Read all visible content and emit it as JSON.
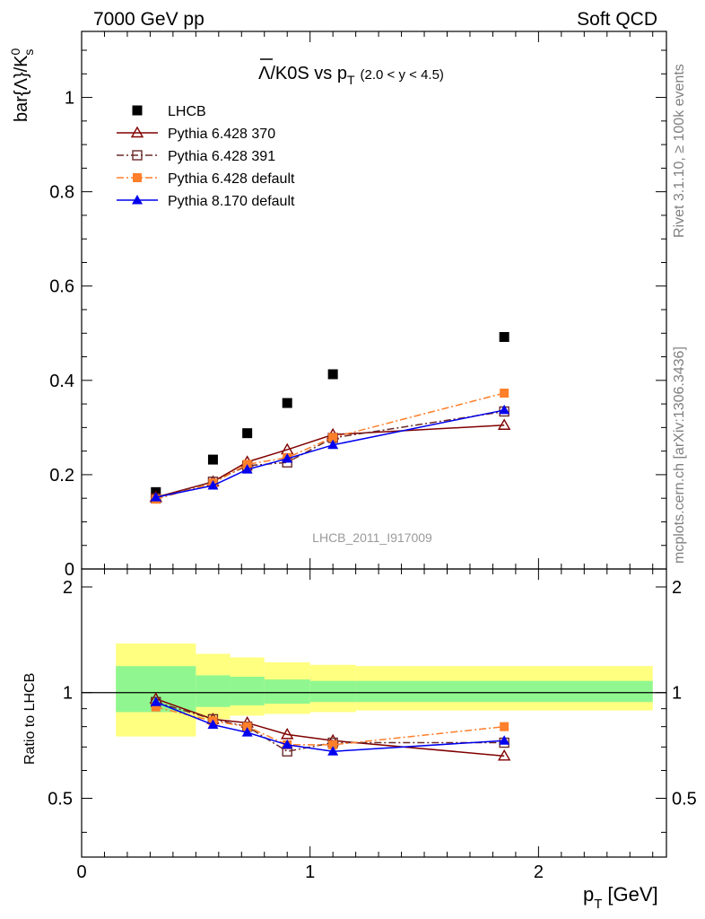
{
  "header": {
    "left": "7000 GeV pp",
    "right": "Soft QCD"
  },
  "side_labels": {
    "rivet": "Rivet 3.1.10, ≥ 100k events",
    "mcplots": "mcplots.cern.ch [arXiv:1306.3436]"
  },
  "chart_data": [
    {
      "type": "scatter",
      "title": "Λ/K0S vs p",
      "title_sub": "T",
      "title_range": "(2.0 < y < 4.5)",
      "ylabel": "bar{Λ}/K",
      "ylabel_sup": "0",
      "ylabel_sub": "s",
      "watermark": "LHCB_2011_I917009",
      "xlim": [
        0,
        2.56
      ],
      "ylim": [
        0,
        1.14
      ],
      "yticks": [
        0,
        0.2,
        0.4,
        0.6,
        0.8,
        1
      ],
      "ytick_labels": [
        "0",
        "0.2",
        "0.4",
        "0.6",
        "0.8",
        "1"
      ],
      "legend_position": "top-left",
      "x": [
        0.325,
        0.575,
        0.725,
        0.9,
        1.1,
        1.85
      ],
      "series": [
        {
          "name": "LHCB",
          "color": "#000000",
          "marker": "square",
          "line": "none",
          "values": [
            0.163,
            0.232,
            0.288,
            0.352,
            0.413,
            0.492
          ]
        },
        {
          "name": "Pythia 6.428 370",
          "color": "#800000",
          "marker": "triangle-open",
          "line": "solid",
          "values": [
            0.152,
            0.185,
            0.227,
            0.253,
            0.285,
            0.305
          ]
        },
        {
          "name": "Pythia 6.428 391",
          "color": "#6b2a2a",
          "marker": "square-open",
          "line": "dashdot",
          "values": [
            0.15,
            0.185,
            0.219,
            0.226,
            0.278,
            0.334
          ]
        },
        {
          "name": "Pythia 6.428 default",
          "color": "#ff7f2a",
          "marker": "square",
          "line": "dashdot",
          "values": [
            0.148,
            0.182,
            0.222,
            0.236,
            0.279,
            0.373
          ]
        },
        {
          "name": "Pythia 8.170 default",
          "color": "#0000ee",
          "marker": "triangle",
          "line": "solid",
          "values": [
            0.152,
            0.177,
            0.211,
            0.234,
            0.263,
            0.337
          ]
        }
      ]
    },
    {
      "type": "line",
      "ylabel": "Ratio to LHCB",
      "xlabel": "p",
      "xlabel_sub": "T",
      "xlabel_unit": "[GeV]",
      "xlim": [
        0,
        2.56
      ],
      "ylim": [
        0.34,
        2.25
      ],
      "xticks": [
        0,
        1,
        2
      ],
      "xtick_labels": [
        "0",
        "1",
        "2"
      ],
      "yticks": [
        0.5,
        1,
        2
      ],
      "ytick_labels": [
        "0.5",
        "1",
        "2"
      ],
      "x": [
        0.325,
        0.575,
        0.725,
        0.9,
        1.1,
        1.85
      ],
      "bands": [
        {
          "x0": 0.15,
          "x1": 0.5,
          "outer": [
            0.75,
            1.38
          ],
          "inner": [
            0.88,
            1.19
          ]
        },
        {
          "x0": 0.5,
          "x1": 0.65,
          "outer": [
            0.84,
            1.29
          ],
          "inner": [
            0.91,
            1.12
          ]
        },
        {
          "x0": 0.65,
          "x1": 0.8,
          "outer": [
            0.86,
            1.26
          ],
          "inner": [
            0.92,
            1.11
          ]
        },
        {
          "x0": 0.8,
          "x1": 1.0,
          "outer": [
            0.87,
            1.22
          ],
          "inner": [
            0.93,
            1.09
          ]
        },
        {
          "x0": 1.0,
          "x1": 1.2,
          "outer": [
            0.88,
            1.2
          ],
          "inner": [
            0.94,
            1.08
          ]
        },
        {
          "x0": 1.2,
          "x1": 2.5,
          "outer": [
            0.89,
            1.19
          ],
          "inner": [
            0.94,
            1.08
          ]
        }
      ],
      "series": [
        {
          "name": "Pythia 6.428 370",
          "color": "#800000",
          "marker": "triangle-open",
          "line": "solid",
          "values": [
            0.96,
            0.84,
            0.82,
            0.76,
            0.73,
            0.66
          ]
        },
        {
          "name": "Pythia 6.428 391",
          "color": "#6b2a2a",
          "marker": "square-open",
          "line": "dashdot",
          "values": [
            0.94,
            0.84,
            0.8,
            0.68,
            0.72,
            0.72
          ]
        },
        {
          "name": "Pythia 6.428 default",
          "color": "#ff7f2a",
          "marker": "square",
          "line": "dashdot",
          "values": [
            0.91,
            0.83,
            0.8,
            0.71,
            0.71,
            0.8
          ]
        },
        {
          "name": "Pythia 8.170 default",
          "color": "#0000ee",
          "marker": "triangle",
          "line": "solid",
          "values": [
            0.94,
            0.81,
            0.77,
            0.71,
            0.68,
            0.73
          ]
        }
      ]
    }
  ]
}
